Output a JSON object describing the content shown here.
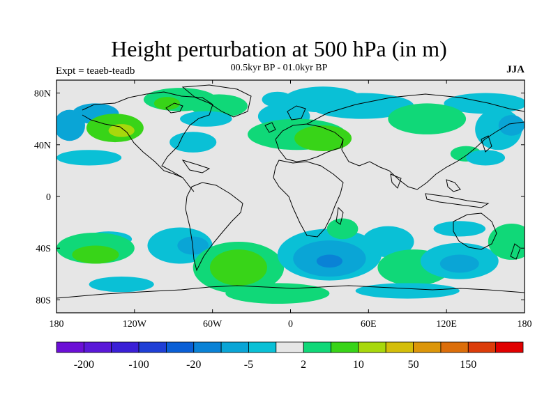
{
  "header": {
    "title": "Height perturbation at 500 hPa (in m)",
    "subtitle": "00.5kyr BP - 01.0kyr BP",
    "experiment": "Expt = teaeb-teadb",
    "season": "JJA"
  },
  "map": {
    "projection": "cylindrical equidistant",
    "land_fill": "#e6e6e6",
    "coastline_color": "#000000",
    "lat_ticks": [
      {
        "label": "80N",
        "value": 80
      },
      {
        "label": "40N",
        "value": 40
      },
      {
        "label": "0",
        "value": 0
      },
      {
        "label": "40S",
        "value": -40
      },
      {
        "label": "80S",
        "value": -80
      }
    ],
    "lon_ticks": [
      {
        "label": "180",
        "value": -180
      },
      {
        "label": "120W",
        "value": -120
      },
      {
        "label": "60W",
        "value": -60
      },
      {
        "label": "0",
        "value": 0
      },
      {
        "label": "60E",
        "value": 60
      },
      {
        "label": "120E",
        "value": 120
      },
      {
        "label": "180",
        "value": 180
      }
    ]
  },
  "colorbar": {
    "colors": [
      "#6b0fd6",
      "#5a18d8",
      "#3a1fd6",
      "#1f3fd6",
      "#0a5fd6",
      "#0a82d6",
      "#0aa5d6",
      "#0ac0d6",
      "#e6e6e6",
      "#10d878",
      "#38d418",
      "#a8d80c",
      "#d4be0a",
      "#dc960a",
      "#dc6e0a",
      "#dc3c0a",
      "#e00000"
    ],
    "labels": [
      {
        "text": "-200",
        "index": 1
      },
      {
        "text": "-100",
        "index": 3
      },
      {
        "text": "-20",
        "index": 5
      },
      {
        "text": "-5",
        "index": 7
      },
      {
        "text": "2",
        "index": 9
      },
      {
        "text": "10",
        "index": 11
      },
      {
        "text": "50",
        "index": 13
      },
      {
        "text": "150",
        "index": 15
      }
    ]
  },
  "perturbation_blobs": [
    {
      "lon": -150,
      "lat": 64,
      "rx": 18,
      "ry": 8,
      "level": -2
    },
    {
      "lon": -170,
      "lat": 55,
      "rx": 12,
      "ry": 12,
      "level": -2
    },
    {
      "lon": -135,
      "lat": 53,
      "rx": 22,
      "ry": 11,
      "level": 2
    },
    {
      "lon": -130,
      "lat": 51,
      "rx": 10,
      "ry": 5,
      "level": 3
    },
    {
      "lon": -85,
      "lat": 75,
      "rx": 28,
      "ry": 9,
      "level": 1
    },
    {
      "lon": -55,
      "lat": 70,
      "rx": 22,
      "ry": 9,
      "level": 1
    },
    {
      "lon": -95,
      "lat": 72,
      "rx": 10,
      "ry": 5,
      "level": 2
    },
    {
      "lon": -65,
      "lat": 60,
      "rx": 20,
      "ry": 6,
      "level": -1
    },
    {
      "lon": -75,
      "lat": 42,
      "rx": 18,
      "ry": 8,
      "level": -1
    },
    {
      "lon": -5,
      "lat": 62,
      "rx": 20,
      "ry": 10,
      "level": -1
    },
    {
      "lon": -10,
      "lat": 75,
      "rx": 12,
      "ry": 6,
      "level": -1
    },
    {
      "lon": 5,
      "lat": 48,
      "rx": 38,
      "ry": 12,
      "level": 1
    },
    {
      "lon": 25,
      "lat": 45,
      "rx": 22,
      "ry": 10,
      "level": 2
    },
    {
      "lon": 25,
      "lat": 75,
      "rx": 30,
      "ry": 10,
      "level": -1
    },
    {
      "lon": 55,
      "lat": 70,
      "rx": 40,
      "ry": 10,
      "level": -1
    },
    {
      "lon": 150,
      "lat": 72,
      "rx": 32,
      "ry": 8,
      "level": -1
    },
    {
      "lon": 105,
      "lat": 60,
      "rx": 30,
      "ry": 12,
      "level": 1
    },
    {
      "lon": 160,
      "lat": 52,
      "rx": 18,
      "ry": 16,
      "level": -1
    },
    {
      "lon": 170,
      "lat": 55,
      "rx": 10,
      "ry": 8,
      "level": -2
    },
    {
      "lon": 135,
      "lat": 33,
      "rx": 12,
      "ry": 6,
      "level": 1
    },
    {
      "lon": 150,
      "lat": 30,
      "rx": 15,
      "ry": 6,
      "level": -1
    },
    {
      "lon": -155,
      "lat": 30,
      "rx": 25,
      "ry": 6,
      "level": -1
    },
    {
      "lon": -140,
      "lat": -33,
      "rx": 18,
      "ry": 6,
      "level": -1
    },
    {
      "lon": -150,
      "lat": -40,
      "rx": 30,
      "ry": 12,
      "level": 1
    },
    {
      "lon": -150,
      "lat": -45,
      "rx": 18,
      "ry": 7,
      "level": 2
    },
    {
      "lon": -85,
      "lat": -38,
      "rx": 25,
      "ry": 14,
      "level": -1
    },
    {
      "lon": -75,
      "lat": -38,
      "rx": 12,
      "ry": 7,
      "level": -2
    },
    {
      "lon": -40,
      "lat": -55,
      "rx": 35,
      "ry": 20,
      "level": 1
    },
    {
      "lon": -40,
      "lat": -55,
      "rx": 22,
      "ry": 14,
      "level": 2
    },
    {
      "lon": -130,
      "lat": -68,
      "rx": 25,
      "ry": 6,
      "level": -1
    },
    {
      "lon": -10,
      "lat": -75,
      "rx": 40,
      "ry": 8,
      "level": 1
    },
    {
      "lon": 30,
      "lat": -45,
      "rx": 40,
      "ry": 20,
      "level": -1
    },
    {
      "lon": 30,
      "lat": -48,
      "rx": 28,
      "ry": 14,
      "level": -2
    },
    {
      "lon": 30,
      "lat": -50,
      "rx": 10,
      "ry": 5,
      "level": -3
    },
    {
      "lon": 75,
      "lat": -35,
      "rx": 20,
      "ry": 12,
      "level": -1
    },
    {
      "lon": 40,
      "lat": -25,
      "rx": 12,
      "ry": 8,
      "level": 1
    },
    {
      "lon": 95,
      "lat": -55,
      "rx": 28,
      "ry": 14,
      "level": 1
    },
    {
      "lon": 130,
      "lat": -50,
      "rx": 30,
      "ry": 14,
      "level": -1
    },
    {
      "lon": 130,
      "lat": -52,
      "rx": 15,
      "ry": 7,
      "level": -2
    },
    {
      "lon": 170,
      "lat": -35,
      "rx": 18,
      "ry": 14,
      "level": 1
    },
    {
      "lon": 90,
      "lat": -73,
      "rx": 40,
      "ry": 6,
      "level": -1
    },
    {
      "lon": 130,
      "lat": -25,
      "rx": 20,
      "ry": 6,
      "level": -1
    }
  ]
}
